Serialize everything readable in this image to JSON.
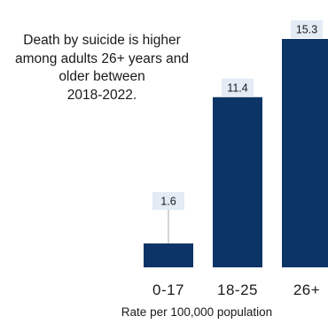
{
  "chart_data": {
    "type": "bar",
    "categories": [
      "0-17",
      "18-25",
      "26+"
    ],
    "values": [
      1.6,
      11.4,
      15.3
    ],
    "data_labels": [
      "1.6",
      "11.4",
      "15.3"
    ],
    "xlabel": "Rate per 100,000 population",
    "annotation": "Death by suicide is higher\namong adults 26+ years and\nolder between\n2018-2022.",
    "ylim": [
      0,
      15.3
    ],
    "grid": false,
    "legend": "none",
    "colors": {
      "bar": "#0d3466",
      "label_bg": "#e3ebf4",
      "leader": "#aaaaaa"
    }
  }
}
